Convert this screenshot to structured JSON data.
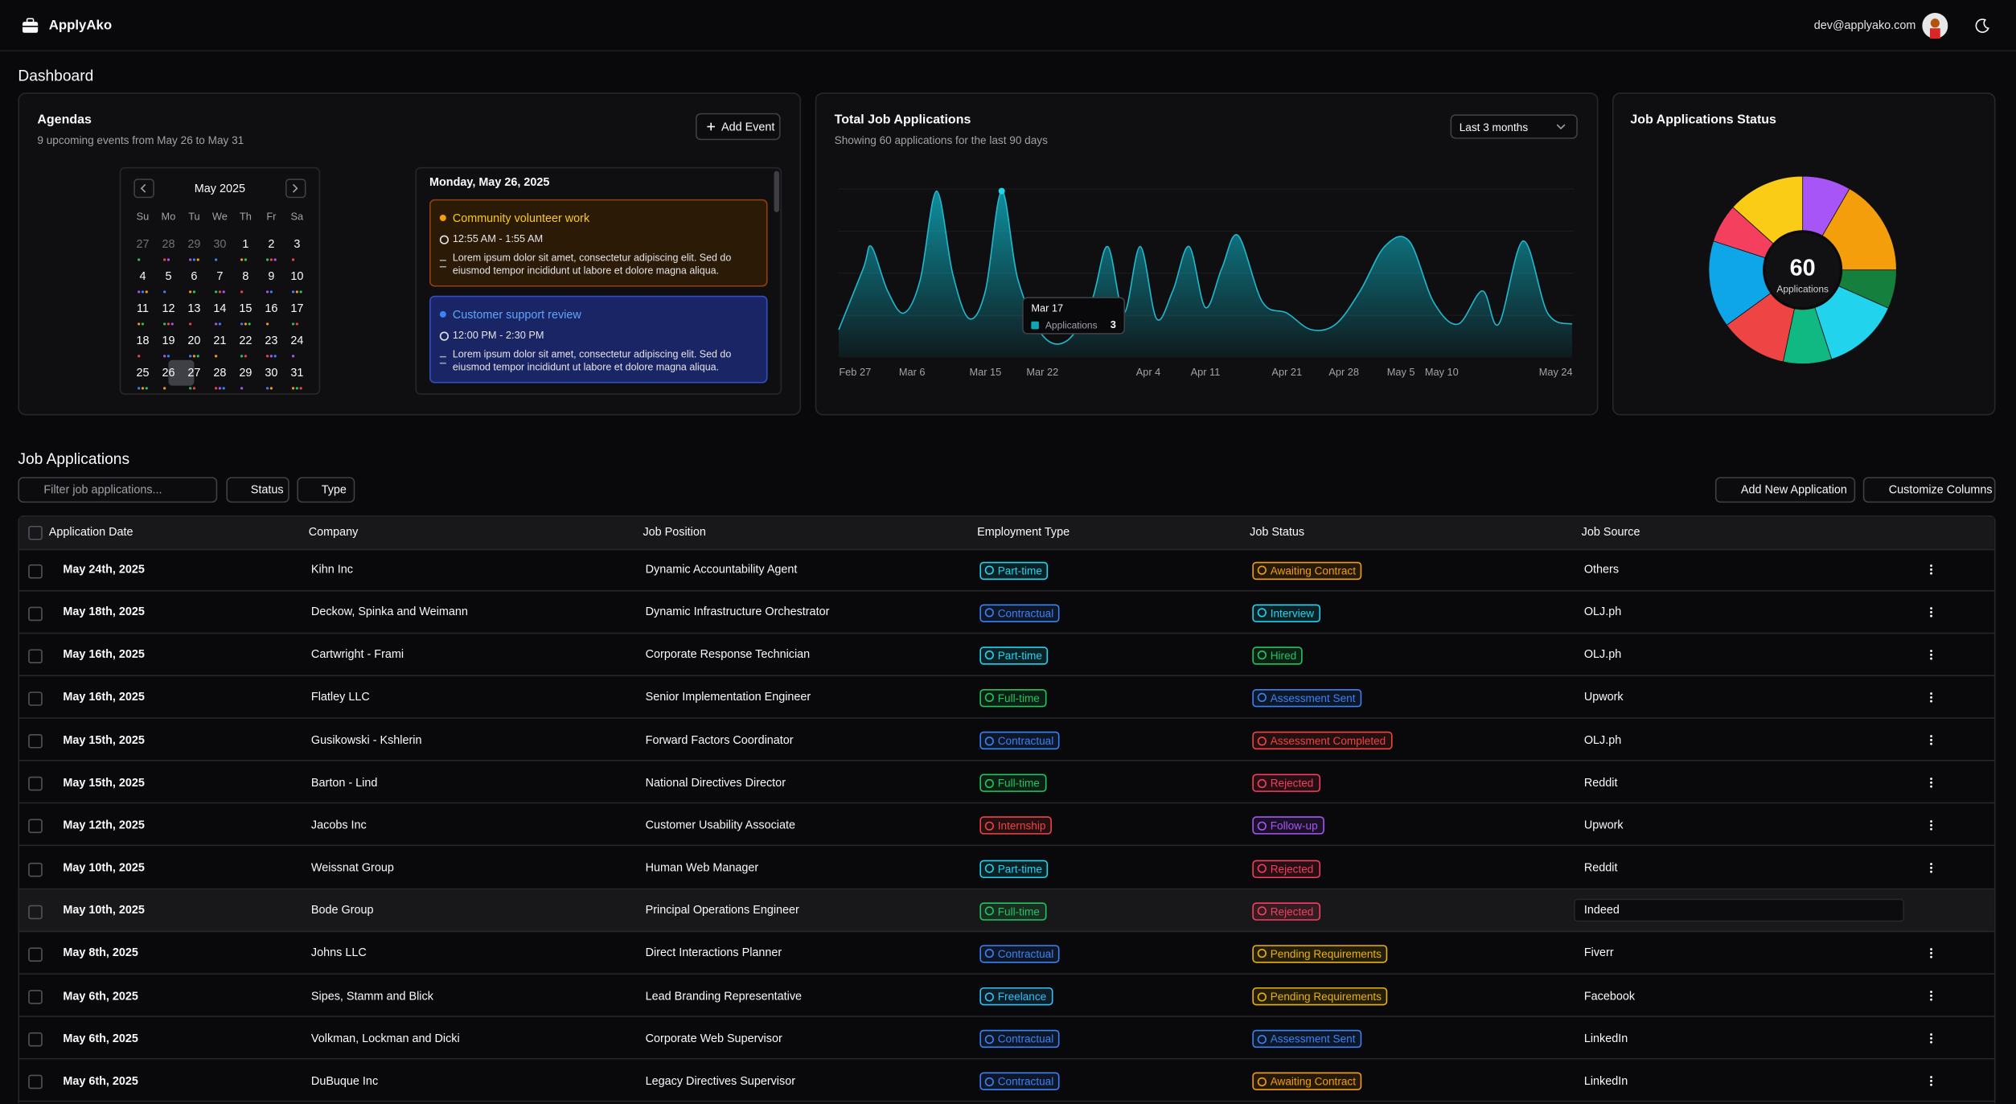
{
  "header": {
    "app_name": "ApplyAko",
    "user_email": "dev@applyako.com"
  },
  "page_title": "Dashboard",
  "agendas": {
    "title": "Agendas",
    "subtitle": "9 upcoming events from May 26 to May 31",
    "add_button": "Add Event",
    "calendar": {
      "month": "May 2025",
      "weekdays": [
        "Su",
        "Mo",
        "Tu",
        "We",
        "Th",
        "Fr",
        "Sa"
      ],
      "weeks": [
        [
          27,
          28,
          29,
          30,
          1,
          2,
          3
        ],
        [
          4,
          5,
          6,
          7,
          8,
          9,
          10
        ],
        [
          11,
          12,
          13,
          14,
          15,
          16,
          17
        ],
        [
          18,
          19,
          20,
          21,
          22,
          23,
          24
        ],
        [
          25,
          26,
          27,
          28,
          29,
          30,
          31
        ]
      ],
      "selected_day": 26
    },
    "day_heading": "Monday, May 26, 2025",
    "events": [
      {
        "title": "Community volunteer work",
        "time": "12:55 AM - 1:55 AM",
        "description": "Lorem ipsum dolor sit amet, consectetur adipiscing elit. Sed do eiusmod tempor incididunt ut labore et dolore magna aliqua.",
        "color": "#f59e0b",
        "background": "#2b1a06",
        "border": "#92400e",
        "title_color": "#facc15"
      },
      {
        "title": "Customer support review",
        "time": "12:00 PM - 2:30 PM",
        "description": "Lorem ipsum dolor sit amet, consectetur adipiscing elit. Sed do eiusmod tempor incididunt ut labore et dolore magna aliqua.",
        "color": "#3b82f6",
        "background": "#1a2566",
        "border": "#2f4fc2",
        "title_color": "#60a5fa"
      }
    ]
  },
  "chart_data": [
    {
      "type": "area",
      "title": "Total Job Applications",
      "subtitle": "Showing 60 applications for the last 90 days",
      "range_select": "Last 3 months",
      "color": "#0ea5b7",
      "x": [
        "Feb 25",
        "Feb 28",
        "Mar 1",
        "Mar 3",
        "Mar 5",
        "Mar 7",
        "Mar 9",
        "Mar 11",
        "Mar 13",
        "Mar 15",
        "Mar 17",
        "Mar 19",
        "Mar 22",
        "Mar 25",
        "Mar 28",
        "Mar 30",
        "Apr 1",
        "Apr 3",
        "Apr 5",
        "Apr 7",
        "Apr 9",
        "Apr 11",
        "Apr 13",
        "Apr 15",
        "Apr 18",
        "Apr 21",
        "Apr 24",
        "Apr 27",
        "Apr 30",
        "May 3",
        "May 6",
        "May 9",
        "May 12",
        "May 15",
        "May 17",
        "May 20",
        "May 23",
        "May 26"
      ],
      "values": [
        0.5,
        1.6,
        2.0,
        1.2,
        0.8,
        1.4,
        3,
        1.5,
        0.7,
        1.2,
        3,
        1.4,
        0.4,
        0.3,
        1.0,
        2.0,
        0.8,
        2.0,
        0.7,
        1.2,
        2.0,
        0.9,
        1.6,
        2.2,
        1.0,
        0.8,
        0.5,
        0.6,
        1.2,
        2.0,
        2.1,
        1.0,
        0.6,
        1.2,
        0.6,
        2.1,
        0.8,
        0.6
      ],
      "x_ticks": [
        "Feb 27",
        "Mar 6",
        "Mar 15",
        "Mar 22",
        "Apr 4",
        "Apr 11",
        "Apr 21",
        "Apr 28",
        "May 5",
        "May 10",
        "May 24"
      ],
      "ylim": [
        0,
        3.2
      ],
      "tooltip": {
        "date": "Mar 17",
        "series_name": "Applications",
        "value": 3
      }
    },
    {
      "type": "pie",
      "title": "Job Applications Status",
      "values": [
        5,
        10,
        4,
        8,
        5,
        7,
        9,
        4,
        8
      ],
      "colors": [
        "#a855f7",
        "#f59e0b",
        "#15803d",
        "#22d3ee",
        "#10b981",
        "#ef4444",
        "#0ea5e9",
        "#f43f5e",
        "#facc15"
      ],
      "center_value": 60,
      "center_label": "Applications"
    }
  ],
  "job_applications": {
    "title": "Job Applications",
    "filter_placeholder": "Filter job applications...",
    "filters": [
      "Status",
      "Type"
    ],
    "actions": [
      "Add New Application",
      "Customize Columns"
    ],
    "columns": [
      "Application Date",
      "Company",
      "Job Position",
      "Employment Type",
      "Job Status",
      "Job Source"
    ],
    "rows": [
      [
        "May 24th, 2025",
        "Kihn Inc",
        "Dynamic Accountability Agent",
        "Part-time",
        "Awaiting Contract",
        "Others"
      ],
      [
        "May 18th, 2025",
        "Deckow, Spinka and Weimann",
        "Dynamic Infrastructure Orchestrator",
        "Contractual",
        "Interview",
        "OLJ.ph"
      ],
      [
        "May 16th, 2025",
        "Cartwright - Frami",
        "Corporate Response Technician",
        "Part-time",
        "Hired",
        "OLJ.ph"
      ],
      [
        "May 16th, 2025",
        "Flatley LLC",
        "Senior Implementation Engineer",
        "Full-time",
        "Assessment Sent",
        "Upwork"
      ],
      [
        "May 15th, 2025",
        "Gusikowski - Kshlerin",
        "Forward Factors Coordinator",
        "Contractual",
        "Assessment Completed",
        "OLJ.ph"
      ],
      [
        "May 15th, 2025",
        "Barton - Lind",
        "National Directives Director",
        "Full-time",
        "Rejected",
        "Reddit"
      ],
      [
        "May 12th, 2025",
        "Jacobs Inc",
        "Customer Usability Associate",
        "Internship",
        "Follow-up",
        "Upwork"
      ],
      [
        "May 10th, 2025",
        "Weissnat Group",
        "Human Web Manager",
        "Part-time",
        "Rejected",
        "Reddit"
      ],
      [
        "May 10th, 2025",
        "Bode Group",
        "Principal Operations Engineer",
        "Full-time",
        "Rejected",
        "Indeed"
      ],
      [
        "May 8th, 2025",
        "Johns LLC",
        "Direct Interactions Planner",
        "Contractual",
        "Pending Requirements",
        "Fiverr"
      ],
      [
        "May 6th, 2025",
        "Sipes, Stamm and Blick",
        "Lead Branding Representative",
        "Freelance",
        "Pending Requirements",
        "Facebook"
      ],
      [
        "May 6th, 2025",
        "Volkman, Lockman and Dicki",
        "Corporate Web Supervisor",
        "Contractual",
        "Assessment Sent",
        "LinkedIn"
      ],
      [
        "May 6th, 2025",
        "DuBuque Inc",
        "Legacy Directives Supervisor",
        "Contractual",
        "Awaiting Contract",
        "LinkedIn"
      ]
    ],
    "type_colors": {
      "Part-time": "#22d3ee",
      "Contractual": "#3b82f6",
      "Full-time": "#22c55e",
      "Internship": "#ef4444",
      "Freelance": "#38bdf8"
    },
    "status_colors": {
      "Awaiting Contract": "#f59e0b",
      "Interview": "#22d3ee",
      "Hired": "#22c55e",
      "Assessment Sent": "#3b82f6",
      "Assessment Completed": "#ef4444",
      "Rejected": "#f43f5e",
      "Follow-up": "#a855f7",
      "Pending Requirements": "#eab308"
    },
    "hovered_row": 8
  }
}
